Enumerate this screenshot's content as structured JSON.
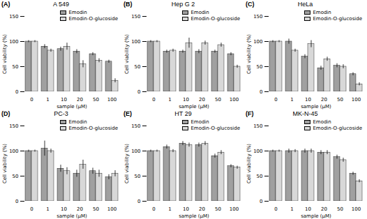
{
  "chart_data": [
    {
      "type": "bar",
      "title": "A 549",
      "annotations": [
        "(A)"
      ],
      "categories": [
        "0",
        "1",
        "10",
        "20",
        "50",
        "100"
      ],
      "series": [
        {
          "name": "Emodin",
          "color": "#a0a0a0",
          "values": [
            100,
            90,
            85,
            80,
            75,
            60
          ],
          "errors": [
            2,
            4,
            4,
            4,
            3,
            3
          ]
        },
        {
          "name": "Emodin-O-glucoside",
          "color": "#d8d8d8",
          "values": [
            100,
            82,
            90,
            55,
            62,
            22
          ],
          "errors": [
            2,
            3,
            7,
            7,
            4,
            4
          ]
        }
      ],
      "xlabel": "sample (μM)",
      "ylabel": "Cell viability (%)",
      "ylim": [
        0,
        150
      ],
      "yticks": [
        0,
        50,
        100,
        150
      ],
      "legend": "upper right"
    },
    {
      "type": "bar",
      "title": "Hep G 2",
      "annotations": [
        "(B)"
      ],
      "categories": [
        "0",
        "1",
        "10",
        "20",
        "50",
        "100"
      ],
      "series": [
        {
          "name": "Emodin",
          "color": "#a0a0a0",
          "values": [
            100,
            80,
            80,
            80,
            80,
            75
          ],
          "errors": [
            2,
            3,
            3,
            4,
            3,
            3
          ]
        },
        {
          "name": "Emodin-O-glucoside",
          "color": "#d8d8d8",
          "values": [
            100,
            82,
            97,
            97,
            93,
            50
          ],
          "errors": [
            2,
            3,
            10,
            4,
            4,
            3
          ]
        }
      ],
      "xlabel": "sample (μM)",
      "ylabel": "Cell viability (%)",
      "ylim": [
        0,
        150
      ],
      "yticks": [
        0,
        50,
        100,
        150
      ],
      "legend": "upper right"
    },
    {
      "type": "bar",
      "title": "HeLa",
      "annotations": [
        "(C)"
      ],
      "categories": [
        "0",
        "1",
        "10",
        "20",
        "50",
        "100"
      ],
      "series": [
        {
          "name": "Emodin",
          "color": "#a0a0a0",
          "values": [
            100,
            100,
            70,
            47,
            52,
            35
          ],
          "errors": [
            2,
            5,
            4,
            4,
            4,
            3
          ]
        },
        {
          "name": "Emodin-O-glucoside",
          "color": "#d8d8d8",
          "values": [
            100,
            82,
            95,
            65,
            50,
            15
          ],
          "errors": [
            2,
            3,
            7,
            4,
            4,
            3
          ]
        }
      ],
      "xlabel": "sample (μM)",
      "ylabel": "Cell viability (%)",
      "ylim": [
        0,
        150
      ],
      "yticks": [
        0,
        50,
        100,
        150
      ],
      "legend": "upper right"
    },
    {
      "type": "bar",
      "title": "PC-3",
      "annotations": [
        "(D)"
      ],
      "categories": [
        "0",
        "1",
        "10",
        "20",
        "50",
        "100"
      ],
      "series": [
        {
          "name": "Emodin",
          "color": "#a0a0a0",
          "values": [
            100,
            105,
            65,
            55,
            60,
            48
          ],
          "errors": [
            2,
            15,
            7,
            7,
            6,
            5
          ]
        },
        {
          "name": "Emodin-O-glucoside",
          "color": "#d8d8d8",
          "values": [
            100,
            100,
            60,
            73,
            55,
            55
          ],
          "errors": [
            2,
            4,
            7,
            9,
            7,
            6
          ]
        }
      ],
      "xlabel": "sample (μM)",
      "ylabel": "Cell viability (%)",
      "ylim": [
        0,
        150
      ],
      "yticks": [
        0,
        50,
        100,
        150
      ],
      "legend": "upper right"
    },
    {
      "type": "bar",
      "title": "HT 29",
      "annotations": [
        "(E)"
      ],
      "categories": [
        "0",
        "1",
        "10",
        "20",
        "50",
        "100"
      ],
      "series": [
        {
          "name": "Emodin",
          "color": "#a0a0a0",
          "values": [
            100,
            108,
            115,
            112,
            90,
            70
          ],
          "errors": [
            2,
            4,
            4,
            4,
            4,
            3
          ]
        },
        {
          "name": "Emodin-O-glucoside",
          "color": "#d8d8d8",
          "values": [
            100,
            100,
            112,
            115,
            97,
            67
          ],
          "errors": [
            2,
            3,
            4,
            4,
            4,
            3
          ]
        }
      ],
      "xlabel": "sample (μM)",
      "ylabel": "Cell viability (%)",
      "ylim": [
        0,
        150
      ],
      "yticks": [
        0,
        50,
        100,
        150
      ],
      "legend": "upper right"
    },
    {
      "type": "bar",
      "title": "MK-N-45",
      "annotations": [
        "(F)"
      ],
      "categories": [
        "0",
        "1",
        "10",
        "20",
        "50",
        "100"
      ],
      "series": [
        {
          "name": "Emodin",
          "color": "#a0a0a0",
          "values": [
            100,
            100,
            100,
            97,
            88,
            55
          ],
          "errors": [
            2,
            4,
            4,
            4,
            4,
            3
          ]
        },
        {
          "name": "Emodin-O-glucoside",
          "color": "#d8d8d8",
          "values": [
            100,
            100,
            100,
            97,
            82,
            40
          ],
          "errors": [
            2,
            3,
            4,
            4,
            4,
            3
          ]
        }
      ],
      "xlabel": "sample (μM)",
      "ylabel": "Cell viability (%)",
      "ylim": [
        0,
        150
      ],
      "yticks": [
        0,
        50,
        100,
        150
      ],
      "legend": "upper right"
    }
  ]
}
